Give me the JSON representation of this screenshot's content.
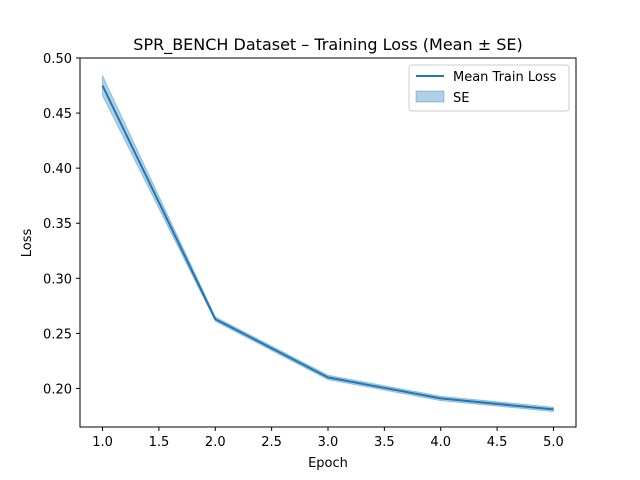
{
  "chart_data": {
    "type": "line",
    "title": "SPR_BENCH Dataset – Training Loss (Mean ± SE)",
    "xlabel": "Epoch",
    "ylabel": "Loss",
    "x": [
      1.0,
      2.0,
      3.0,
      4.0,
      5.0
    ],
    "xlim": [
      0.8,
      5.2
    ],
    "ylim": [
      0.165,
      0.5
    ],
    "xticks": [
      1.0,
      1.5,
      2.0,
      2.5,
      3.0,
      3.5,
      4.0,
      4.5,
      5.0
    ],
    "xtick_labels": [
      "1.0",
      "1.5",
      "2.0",
      "2.5",
      "3.0",
      "3.5",
      "4.0",
      "4.5",
      "5.0"
    ],
    "yticks": [
      0.2,
      0.25,
      0.3,
      0.35,
      0.4,
      0.45,
      0.5
    ],
    "ytick_labels": [
      "0.20",
      "0.25",
      "0.30",
      "0.35",
      "0.40",
      "0.45",
      "0.50"
    ],
    "grid": false,
    "legend_position": "top-right",
    "series": [
      {
        "name": "Mean Train Loss",
        "values": [
          0.475,
          0.263,
          0.21,
          0.191,
          0.181
        ],
        "se_lower": [
          0.466,
          0.261,
          0.208,
          0.189,
          0.179
        ],
        "se_upper": [
          0.484,
          0.265,
          0.212,
          0.193,
          0.183
        ]
      }
    ],
    "legend": [
      {
        "label": "Mean Train Loss",
        "kind": "line"
      },
      {
        "label": "SE",
        "kind": "band"
      }
    ],
    "colors": {
      "line": "#1f77b4",
      "band": "#1f77b4",
      "axis": "#000000"
    }
  }
}
